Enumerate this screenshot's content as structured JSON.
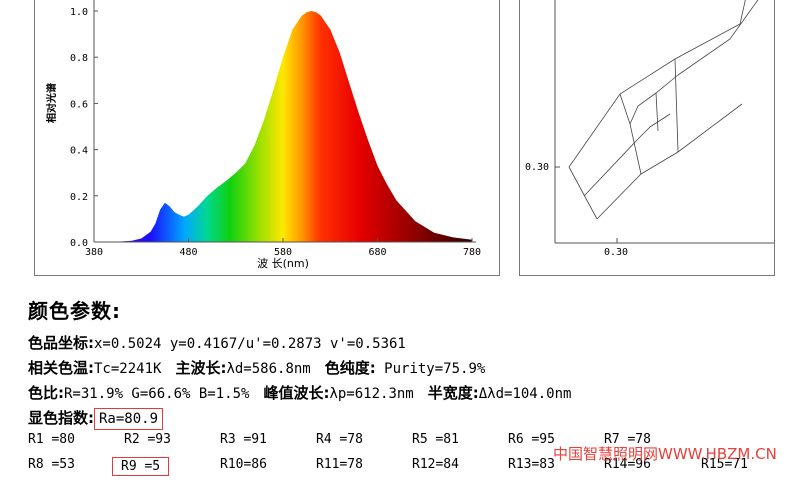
{
  "chart_data": [
    {
      "type": "area",
      "xlabel": "波 长(nm)",
      "ylabel": "相对光谱",
      "xlim": [
        380,
        780
      ],
      "ylim": [
        0,
        1.0
      ],
      "x_ticks": [
        "380",
        "480",
        "580",
        "680",
        "780"
      ],
      "y_ticks": [
        "0.0",
        "0.2",
        "0.4",
        "0.6",
        "0.8",
        "1.0"
      ],
      "x": [
        380,
        400,
        420,
        430,
        440,
        445,
        450,
        455,
        460,
        465,
        470,
        475,
        480,
        490,
        500,
        510,
        520,
        530,
        540,
        550,
        560,
        570,
        580,
        590,
        600,
        605,
        610,
        615,
        620,
        625,
        630,
        640,
        650,
        660,
        670,
        680,
        690,
        700,
        720,
        740,
        760,
        780
      ],
      "values": [
        0.0,
        0.0,
        0.005,
        0.015,
        0.045,
        0.08,
        0.14,
        0.17,
        0.155,
        0.13,
        0.118,
        0.11,
        0.118,
        0.155,
        0.2,
        0.235,
        0.265,
        0.3,
        0.34,
        0.42,
        0.53,
        0.66,
        0.8,
        0.92,
        0.98,
        0.995,
        1.0,
        0.995,
        0.98,
        0.95,
        0.92,
        0.82,
        0.69,
        0.56,
        0.44,
        0.33,
        0.25,
        0.18,
        0.09,
        0.04,
        0.02,
        0.01
      ]
    },
    {
      "type": "diagram",
      "x_ticks": [
        "0.30"
      ],
      "y_ticks": [
        "0.30"
      ]
    }
  ],
  "params": {
    "title": "颜色参数:",
    "row1": {
      "label": "色品坐标:",
      "value": "x=0.5024  y=0.4167/u'=0.2873  v'=0.5361"
    },
    "row2": [
      {
        "label": "相关色温:",
        "value": "Tc=2241K"
      },
      {
        "label": "主波长:",
        "value": "λd=586.8nm"
      },
      {
        "label": "色纯度:",
        "value": " Purity=75.9%"
      }
    ],
    "row3": [
      {
        "label": "色比:",
        "value": "R=31.9% G=66.6% B=1.5%"
      },
      {
        "label": "峰值波长:",
        "value": "λp=612.3nm"
      },
      {
        "label": "半宽度:",
        "value": "Δλd=104.0nm"
      }
    ],
    "row4": {
      "label": "显色指数:",
      "value": "Ra=80.9"
    },
    "ri": [
      [
        "R1 =80",
        "R2 =93",
        "R3 =91",
        "R4 =78",
        "R5 =81",
        "R6 =95",
        "R7 =78"
      ],
      [
        "R8 =53",
        "R9 =5",
        "R10=86",
        "R11=78",
        "R12=84",
        "R13=83",
        "R14=96",
        "R15=71"
      ]
    ]
  },
  "watermark": "中国智慧照明网WWW.HBZM.CN",
  "colors": {
    "highlight": "#e23b3b",
    "watermark": "#e8403a",
    "axis": "#555555"
  }
}
